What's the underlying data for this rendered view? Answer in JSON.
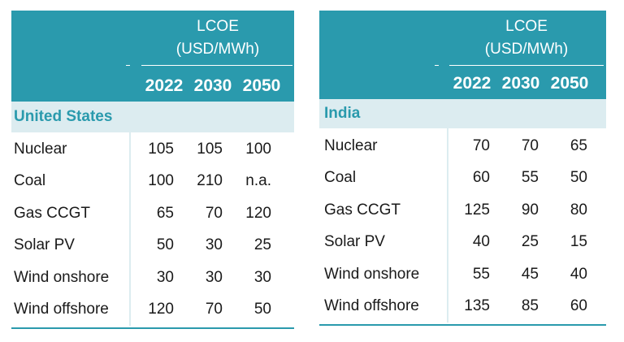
{
  "tables": [
    {
      "header": "LCOE",
      "unit": "(USD/MWh)",
      "years": [
        "2022",
        "2030",
        "2050"
      ],
      "region": "United States",
      "rows": [
        {
          "label": "Nuclear",
          "values": [
            "105",
            "105",
            "100"
          ]
        },
        {
          "label": "Coal",
          "values": [
            "100",
            "210",
            "n.a."
          ]
        },
        {
          "label": "Gas CCGT",
          "values": [
            "65",
            "70",
            "120"
          ]
        },
        {
          "label": "Solar PV",
          "values": [
            "50",
            "30",
            "25"
          ]
        },
        {
          "label": "Wind onshore",
          "values": [
            "30",
            "30",
            "30"
          ]
        },
        {
          "label": "Wind offshore",
          "values": [
            "120",
            "70",
            "50"
          ]
        }
      ]
    },
    {
      "header": "LCOE",
      "unit": "(USD/MWh)",
      "years": [
        "2022",
        "2030",
        "2050"
      ],
      "region": "India",
      "rows": [
        {
          "label": "Nuclear",
          "values": [
            "70",
            "70",
            "65"
          ]
        },
        {
          "label": "Coal",
          "values": [
            "60",
            "55",
            "50"
          ]
        },
        {
          "label": "Gas CCGT",
          "values": [
            "125",
            "90",
            "80"
          ]
        },
        {
          "label": "Solar PV",
          "values": [
            "40",
            "25",
            "15"
          ]
        },
        {
          "label": "Wind onshore",
          "values": [
            "55",
            "45",
            "40"
          ]
        },
        {
          "label": "Wind offshore",
          "values": [
            "135",
            "85",
            "60"
          ]
        }
      ]
    }
  ],
  "colors": {
    "header_bg": "#2a9aad",
    "region_bg": "#dcecf0",
    "region_text": "#2a9aad"
  }
}
